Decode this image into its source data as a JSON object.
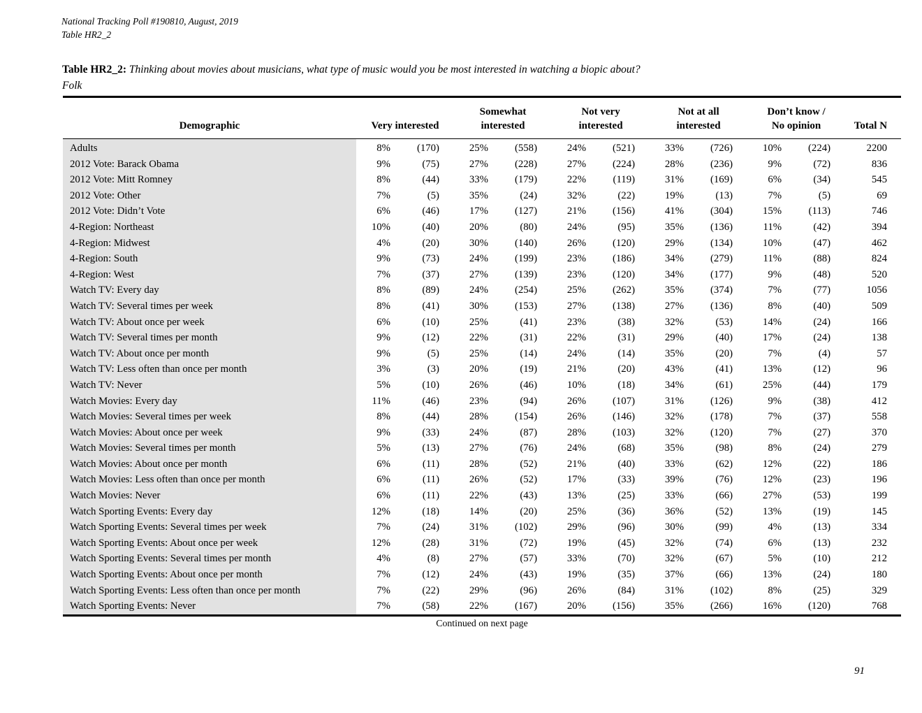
{
  "page": {
    "header_line1": "National Tracking Poll #190810, August, 2019",
    "header_line2": "Table HR2_2",
    "continued": "Continued on next page",
    "page_number": "91"
  },
  "colors": {
    "demographic_shade": "#e2e2e2",
    "text": "#000000",
    "rule": "#000000"
  },
  "table": {
    "title_label": "Table HR2_2:",
    "title_question": "Thinking about movies about musicians, what type of music would you be most interested in watching a biopic about?",
    "title_subject": "Folk",
    "columns": {
      "demographic": "Demographic",
      "groups": [
        {
          "line1": "",
          "line2": "Very interested"
        },
        {
          "line1": "Somewhat",
          "line2": "interested"
        },
        {
          "line1": "Not very",
          "line2": "interested"
        },
        {
          "line1": "Not at all",
          "line2": "interested"
        },
        {
          "line1": "Don’t know /",
          "line2": "No opinion"
        }
      ],
      "total": "Total N"
    },
    "rows": [
      {
        "demographic": "Adults",
        "cells": [
          "8%",
          "(170)",
          "25%",
          "(558)",
          "24%",
          "(521)",
          "33%",
          "(726)",
          "10%",
          "(224)"
        ],
        "total": "2200"
      },
      {
        "demographic": "2012 Vote: Barack Obama",
        "cells": [
          "9%",
          "(75)",
          "27%",
          "(228)",
          "27%",
          "(224)",
          "28%",
          "(236)",
          "9%",
          "(72)"
        ],
        "total": "836"
      },
      {
        "demographic": "2012 Vote: Mitt Romney",
        "cells": [
          "8%",
          "(44)",
          "33%",
          "(179)",
          "22%",
          "(119)",
          "31%",
          "(169)",
          "6%",
          "(34)"
        ],
        "total": "545"
      },
      {
        "demographic": "2012 Vote: Other",
        "cells": [
          "7%",
          "(5)",
          "35%",
          "(24)",
          "32%",
          "(22)",
          "19%",
          "(13)",
          "7%",
          "(5)"
        ],
        "total": "69"
      },
      {
        "demographic": "2012 Vote: Didn’t Vote",
        "cells": [
          "6%",
          "(46)",
          "17%",
          "(127)",
          "21%",
          "(156)",
          "41%",
          "(304)",
          "15%",
          "(113)"
        ],
        "total": "746"
      },
      {
        "demographic": "4-Region: Northeast",
        "cells": [
          "10%",
          "(40)",
          "20%",
          "(80)",
          "24%",
          "(95)",
          "35%",
          "(136)",
          "11%",
          "(42)"
        ],
        "total": "394"
      },
      {
        "demographic": "4-Region: Midwest",
        "cells": [
          "4%",
          "(20)",
          "30%",
          "(140)",
          "26%",
          "(120)",
          "29%",
          "(134)",
          "10%",
          "(47)"
        ],
        "total": "462"
      },
      {
        "demographic": "4-Region: South",
        "cells": [
          "9%",
          "(73)",
          "24%",
          "(199)",
          "23%",
          "(186)",
          "34%",
          "(279)",
          "11%",
          "(88)"
        ],
        "total": "824"
      },
      {
        "demographic": "4-Region: West",
        "cells": [
          "7%",
          "(37)",
          "27%",
          "(139)",
          "23%",
          "(120)",
          "34%",
          "(177)",
          "9%",
          "(48)"
        ],
        "total": "520"
      },
      {
        "demographic": "Watch TV: Every day",
        "cells": [
          "8%",
          "(89)",
          "24%",
          "(254)",
          "25%",
          "(262)",
          "35%",
          "(374)",
          "7%",
          "(77)"
        ],
        "total": "1056"
      },
      {
        "demographic": "Watch TV: Several times per week",
        "cells": [
          "8%",
          "(41)",
          "30%",
          "(153)",
          "27%",
          "(138)",
          "27%",
          "(136)",
          "8%",
          "(40)"
        ],
        "total": "509"
      },
      {
        "demographic": "Watch TV: About once per week",
        "cells": [
          "6%",
          "(10)",
          "25%",
          "(41)",
          "23%",
          "(38)",
          "32%",
          "(53)",
          "14%",
          "(24)"
        ],
        "total": "166"
      },
      {
        "demographic": "Watch TV: Several times per month",
        "cells": [
          "9%",
          "(12)",
          "22%",
          "(31)",
          "22%",
          "(31)",
          "29%",
          "(40)",
          "17%",
          "(24)"
        ],
        "total": "138"
      },
      {
        "demographic": "Watch TV: About once per month",
        "cells": [
          "9%",
          "(5)",
          "25%",
          "(14)",
          "24%",
          "(14)",
          "35%",
          "(20)",
          "7%",
          "(4)"
        ],
        "total": "57"
      },
      {
        "demographic": "Watch TV: Less often than once per month",
        "cells": [
          "3%",
          "(3)",
          "20%",
          "(19)",
          "21%",
          "(20)",
          "43%",
          "(41)",
          "13%",
          "(12)"
        ],
        "total": "96"
      },
      {
        "demographic": "Watch TV: Never",
        "cells": [
          "5%",
          "(10)",
          "26%",
          "(46)",
          "10%",
          "(18)",
          "34%",
          "(61)",
          "25%",
          "(44)"
        ],
        "total": "179"
      },
      {
        "demographic": "Watch Movies: Every day",
        "cells": [
          "11%",
          "(46)",
          "23%",
          "(94)",
          "26%",
          "(107)",
          "31%",
          "(126)",
          "9%",
          "(38)"
        ],
        "total": "412"
      },
      {
        "demographic": "Watch Movies: Several times per week",
        "cells": [
          "8%",
          "(44)",
          "28%",
          "(154)",
          "26%",
          "(146)",
          "32%",
          "(178)",
          "7%",
          "(37)"
        ],
        "total": "558"
      },
      {
        "demographic": "Watch Movies: About once per week",
        "cells": [
          "9%",
          "(33)",
          "24%",
          "(87)",
          "28%",
          "(103)",
          "32%",
          "(120)",
          "7%",
          "(27)"
        ],
        "total": "370"
      },
      {
        "demographic": "Watch Movies: Several times per month",
        "cells": [
          "5%",
          "(13)",
          "27%",
          "(76)",
          "24%",
          "(68)",
          "35%",
          "(98)",
          "8%",
          "(24)"
        ],
        "total": "279"
      },
      {
        "demographic": "Watch Movies: About once per month",
        "cells": [
          "6%",
          "(11)",
          "28%",
          "(52)",
          "21%",
          "(40)",
          "33%",
          "(62)",
          "12%",
          "(22)"
        ],
        "total": "186"
      },
      {
        "demographic": "Watch Movies: Less often than once per month",
        "cells": [
          "6%",
          "(11)",
          "26%",
          "(52)",
          "17%",
          "(33)",
          "39%",
          "(76)",
          "12%",
          "(23)"
        ],
        "total": "196"
      },
      {
        "demographic": "Watch Movies: Never",
        "cells": [
          "6%",
          "(11)",
          "22%",
          "(43)",
          "13%",
          "(25)",
          "33%",
          "(66)",
          "27%",
          "(53)"
        ],
        "total": "199"
      },
      {
        "demographic": "Watch Sporting Events: Every day",
        "cells": [
          "12%",
          "(18)",
          "14%",
          "(20)",
          "25%",
          "(36)",
          "36%",
          "(52)",
          "13%",
          "(19)"
        ],
        "total": "145"
      },
      {
        "demographic": "Watch Sporting Events: Several times per week",
        "cells": [
          "7%",
          "(24)",
          "31%",
          "(102)",
          "29%",
          "(96)",
          "30%",
          "(99)",
          "4%",
          "(13)"
        ],
        "total": "334"
      },
      {
        "demographic": "Watch Sporting Events: About once per week",
        "cells": [
          "12%",
          "(28)",
          "31%",
          "(72)",
          "19%",
          "(45)",
          "32%",
          "(74)",
          "6%",
          "(13)"
        ],
        "total": "232"
      },
      {
        "demographic": "Watch Sporting Events: Several times per month",
        "cells": [
          "4%",
          "(8)",
          "27%",
          "(57)",
          "33%",
          "(70)",
          "32%",
          "(67)",
          "5%",
          "(10)"
        ],
        "total": "212"
      },
      {
        "demographic": "Watch Sporting Events: About once per month",
        "cells": [
          "7%",
          "(12)",
          "24%",
          "(43)",
          "19%",
          "(35)",
          "37%",
          "(66)",
          "13%",
          "(24)"
        ],
        "total": "180"
      },
      {
        "demographic": "Watch Sporting Events: Less often than once per month",
        "cells": [
          "7%",
          "(22)",
          "29%",
          "(96)",
          "26%",
          "(84)",
          "31%",
          "(102)",
          "8%",
          "(25)"
        ],
        "total": "329"
      },
      {
        "demographic": "Watch Sporting Events: Never",
        "cells": [
          "7%",
          "(58)",
          "22%",
          "(167)",
          "20%",
          "(156)",
          "35%",
          "(266)",
          "16%",
          "(120)"
        ],
        "total": "768"
      }
    ]
  }
}
